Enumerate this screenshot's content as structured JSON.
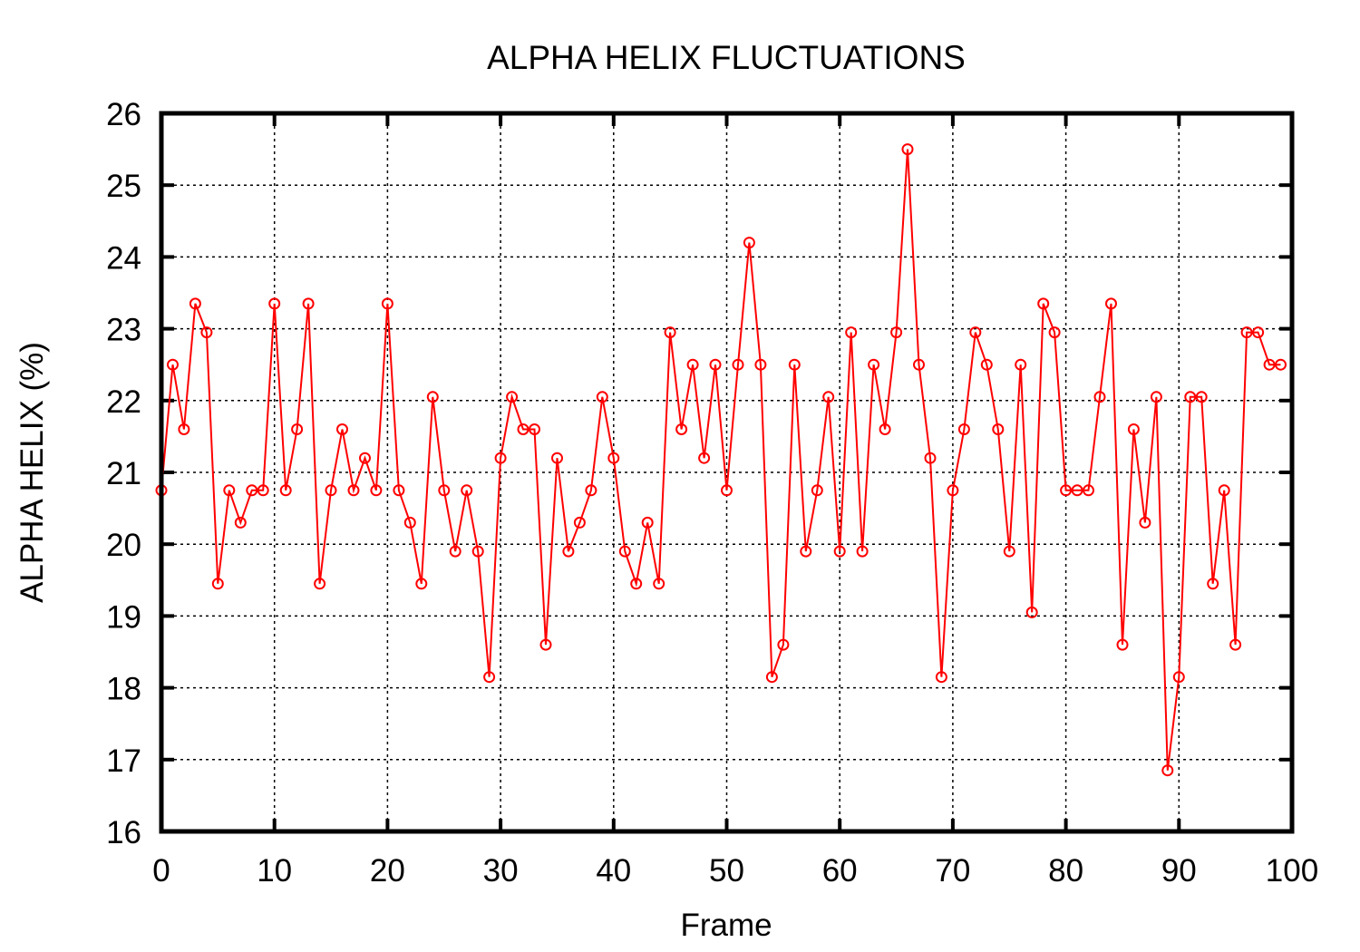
{
  "chart_data": {
    "type": "line",
    "title": "ALPHA HELIX FLUCTUATIONS",
    "xlabel": "Frame",
    "ylabel": "ALPHA HELIX (%)",
    "xlim": [
      0,
      100
    ],
    "ylim": [
      16,
      26
    ],
    "xticks": [
      0,
      10,
      20,
      30,
      40,
      50,
      60,
      70,
      80,
      90,
      100
    ],
    "yticks": [
      16,
      17,
      18,
      19,
      20,
      21,
      22,
      23,
      24,
      25,
      26
    ],
    "grid": true,
    "marker": "open-circle",
    "color": "#ff0000",
    "series": [
      {
        "x": [
          0,
          1,
          2,
          3,
          4,
          5,
          6,
          7,
          8,
          9,
          10,
          11,
          12,
          13,
          14,
          15,
          16,
          17,
          18,
          19,
          20,
          21,
          22,
          23,
          24,
          25,
          26,
          27,
          28,
          29,
          30,
          31,
          32,
          33,
          34,
          35,
          36,
          37,
          38,
          39,
          40,
          41,
          42,
          43,
          44,
          45,
          46,
          47,
          48,
          49,
          50,
          51,
          52,
          53,
          54,
          55,
          56,
          57,
          58,
          59,
          60,
          61,
          62,
          63,
          64,
          65,
          66,
          67,
          68,
          69,
          70,
          71,
          72,
          73,
          74,
          75,
          76,
          77,
          78,
          79,
          80,
          81,
          82,
          83,
          84,
          85,
          86,
          87,
          88,
          89,
          90,
          91,
          92,
          93,
          94,
          95,
          96,
          97,
          98,
          99
        ],
        "values": [
          20.75,
          22.5,
          21.6,
          23.35,
          22.95,
          19.45,
          20.75,
          20.3,
          20.75,
          20.75,
          23.35,
          20.75,
          21.6,
          23.35,
          19.45,
          20.75,
          21.6,
          20.75,
          21.2,
          20.75,
          23.35,
          20.75,
          20.3,
          19.45,
          22.05,
          20.75,
          19.9,
          20.75,
          19.9,
          18.15,
          21.2,
          22.05,
          21.6,
          21.6,
          18.6,
          21.2,
          19.9,
          20.3,
          20.75,
          22.05,
          21.2,
          19.9,
          19.45,
          20.3,
          19.45,
          22.95,
          21.6,
          22.5,
          21.2,
          22.5,
          20.75,
          22.5,
          24.2,
          22.5,
          18.15,
          18.6,
          22.5,
          19.9,
          20.75,
          22.05,
          19.9,
          22.95,
          19.9,
          22.5,
          21.6,
          22.95,
          25.5,
          22.5,
          21.2,
          18.15,
          20.75,
          21.6,
          22.95,
          22.5,
          21.6,
          19.9,
          22.5,
          19.05,
          23.35,
          22.95,
          20.75,
          20.75,
          20.75,
          22.05,
          23.35,
          18.6,
          21.6,
          20.3,
          22.05,
          16.85,
          18.15,
          22.05,
          22.05,
          19.45,
          20.75,
          18.6,
          22.95,
          22.95,
          22.5,
          22.5
        ]
      }
    ]
  }
}
